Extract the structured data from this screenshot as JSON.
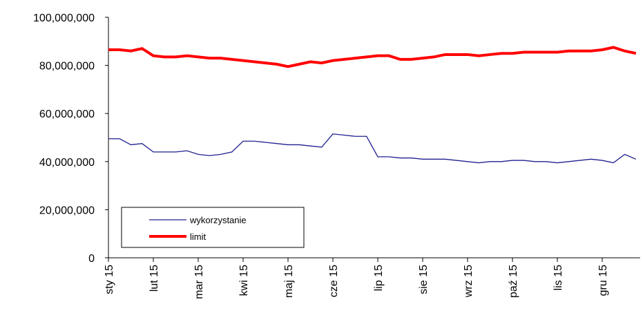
{
  "chart_data": {
    "type": "line",
    "categories": [
      "sty 15",
      null,
      null,
      null,
      "lut 15",
      null,
      null,
      null,
      "mar 15",
      null,
      null,
      null,
      "kwi 15",
      null,
      null,
      null,
      "maj 15",
      null,
      null,
      null,
      "cze 15",
      null,
      null,
      null,
      "lip 15",
      null,
      null,
      null,
      "sie 15",
      null,
      null,
      null,
      "wrz 15",
      null,
      null,
      null,
      "paź 15",
      null,
      null,
      null,
      "lis 15",
      null,
      null,
      null,
      "gru 15",
      null,
      null,
      null
    ],
    "series": [
      {
        "name": "wykorzystanie",
        "color": "#1f1f8f",
        "values": [
          49500000,
          49500000,
          47000000,
          47500000,
          44000000,
          44000000,
          44000000,
          44500000,
          43000000,
          42500000,
          43000000,
          44000000,
          48500000,
          48500000,
          48000000,
          47500000,
          47000000,
          47000000,
          46500000,
          46000000,
          51500000,
          51000000,
          50500000,
          50500000,
          42000000,
          42000000,
          41500000,
          41500000,
          41000000,
          41000000,
          41000000,
          40500000,
          40000000,
          39500000,
          40000000,
          40000000,
          40500000,
          40500000,
          40000000,
          40000000,
          39500000,
          40000000,
          40500000,
          41000000,
          40500000,
          39500000,
          43000000,
          41000000
        ]
      },
      {
        "name": "limit",
        "color": "#ff0000",
        "values": [
          86500000,
          86500000,
          86000000,
          87000000,
          84000000,
          83500000,
          83500000,
          84000000,
          83500000,
          83000000,
          83000000,
          82500000,
          82000000,
          81500000,
          81000000,
          80500000,
          79500000,
          80500000,
          81500000,
          81000000,
          82000000,
          82500000,
          83000000,
          83500000,
          84000000,
          84000000,
          82500000,
          82500000,
          83000000,
          83500000,
          84500000,
          84500000,
          84500000,
          84000000,
          84500000,
          85000000,
          85000000,
          85500000,
          85500000,
          85500000,
          85500000,
          86000000,
          86000000,
          86000000,
          86500000,
          87500000,
          86000000,
          85000000
        ]
      }
    ],
    "ylim": [
      0,
      100000000
    ],
    "yticks": [
      0,
      {
        "value": 20000000,
        "label": "20,000,000"
      },
      {
        "value": 40000000,
        "label": "40,000,000"
      },
      {
        "value": 60000000,
        "label": "60,000,000"
      },
      {
        "value": 80000000,
        "label": "80,000,000"
      },
      {
        "value": 100000000,
        "label": "100,000,000"
      }
    ],
    "grid": false
  }
}
